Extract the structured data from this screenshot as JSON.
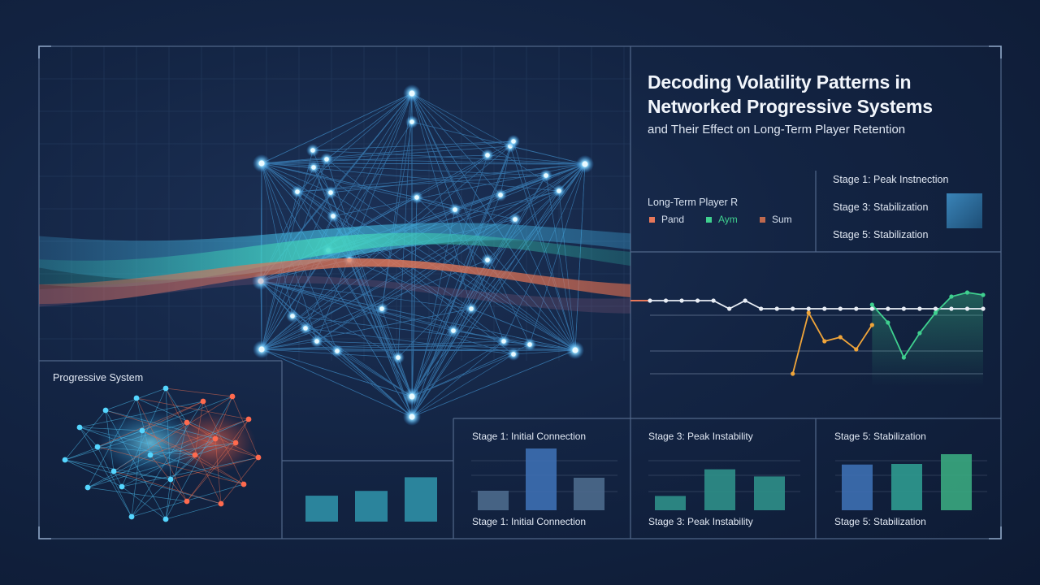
{
  "header": {
    "title_line1": "Decoding Volatility Patterns in",
    "title_line2": "Networked Progressive Systems",
    "subtitle": "and Their Effect on Long-Term Player Retention"
  },
  "legend": {
    "title": "Long-Term Player R",
    "items": [
      {
        "label": "Pand",
        "color": "#e8785a"
      },
      {
        "label": "Aym",
        "color": "#3fd08f"
      },
      {
        "label": "Sum",
        "color": "#c0694e"
      }
    ]
  },
  "stage_list": [
    "Stage 1: Peak Instnection",
    "Stage 3: Stabilization",
    "Stage 5: Stabilization"
  ],
  "network_panel": {
    "label": "Progressive System"
  },
  "bar_panels": [
    {
      "top_label": "",
      "bottom_label": "",
      "chart_data": {
        "type": "bar",
        "values": [
          38,
          45,
          65
        ]
      }
    },
    {
      "top_label": "Stage 1: Initial Connection",
      "bottom_label": "Stage 1: Initial Connection",
      "chart_data": {
        "type": "bar",
        "values": [
          30,
          95,
          50
        ],
        "colors": [
          "#4d6a8c",
          "#3d6fb3",
          "#4d6a8c"
        ]
      }
    },
    {
      "top_label": "Stage 3: Peak Instability",
      "bottom_label": "Stage 3: Peak Instability",
      "chart_data": {
        "type": "bar",
        "values": [
          22,
          63,
          52
        ],
        "colors": [
          "#2f8f88",
          "#2f8f88",
          "#2f8f88"
        ]
      }
    },
    {
      "top_label": "Stage 5: Stabilization",
      "bottom_label": "Stage 5: Stabilization",
      "chart_data": {
        "type": "bar",
        "values": [
          75,
          76,
          92
        ],
        "colors": [
          "#3d6fb3",
          "#2f9a90",
          "#3aa87f"
        ]
      }
    }
  ],
  "chart_data": {
    "type": "line",
    "x": [
      0,
      1,
      2,
      3,
      4,
      5,
      6,
      7,
      8,
      9,
      10,
      11,
      12,
      13,
      14,
      15,
      16,
      17,
      18,
      19,
      20,
      21
    ],
    "series": [
      {
        "color": "#e8edf5",
        "values": [
          55,
          55,
          55,
          55,
          55,
          45,
          55,
          45,
          45,
          45,
          45,
          45,
          45,
          45,
          45,
          45,
          45,
          45,
          45,
          45,
          45,
          45
        ]
      },
      {
        "color": "#f0a53a",
        "values": [
          null,
          null,
          null,
          null,
          null,
          null,
          null,
          null,
          null,
          -35,
          40,
          5,
          10,
          -5,
          25,
          null,
          null,
          null,
          null,
          null,
          null,
          null
        ]
      },
      {
        "color": "#3fd08f",
        "values": [
          null,
          null,
          null,
          null,
          null,
          null,
          null,
          null,
          null,
          null,
          null,
          null,
          null,
          null,
          50,
          28,
          -15,
          15,
          40,
          60,
          65,
          62
        ]
      }
    ]
  }
}
